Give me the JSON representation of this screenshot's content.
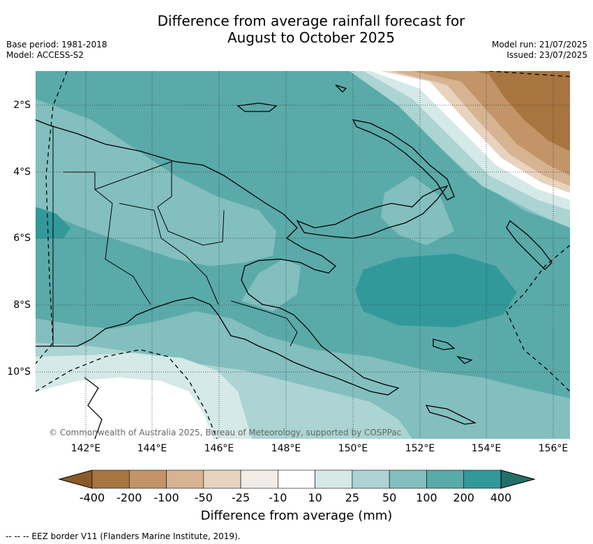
{
  "header": {
    "title_line1": "Difference from average rainfall forecast for",
    "title_line2": "August to October 2025",
    "base_period": "Base period: 1981-2018",
    "model": "Model: ACCESS-S2",
    "model_run": "Model run: 21/07/2025",
    "issued": "Issued: 23/07/2025"
  },
  "map": {
    "copyright": "© Commonwealth of Australia 2025, Bureau of Meteorology, supported by COSPPac",
    "lat_labels": [
      "2°S",
      "4°S",
      "6°S",
      "8°S",
      "10°S"
    ],
    "lon_labels": [
      "142°E",
      "144°E",
      "146°E",
      "148°E",
      "150°E",
      "152°E",
      "154°E",
      "156°E"
    ]
  },
  "legend": {
    "title": "Difference from average (mm)",
    "bins": [
      "-400",
      "-200",
      "-100",
      "-50",
      "-25",
      "-10",
      "10",
      "25",
      "50",
      "100",
      "200",
      "400"
    ],
    "colors": [
      "#8a5a2b",
      "#a8743f",
      "#c29467",
      "#d6b391",
      "#e8d3bf",
      "#f2ece7",
      "#ffffff",
      "#d5e9e8",
      "#abd4d3",
      "#83bfbe",
      "#5aaaa9",
      "#32999a",
      "#246e6a"
    ]
  },
  "footnote": "--  --  -- EEZ border V11 (Flanders Marine Institute, 2019)."
}
